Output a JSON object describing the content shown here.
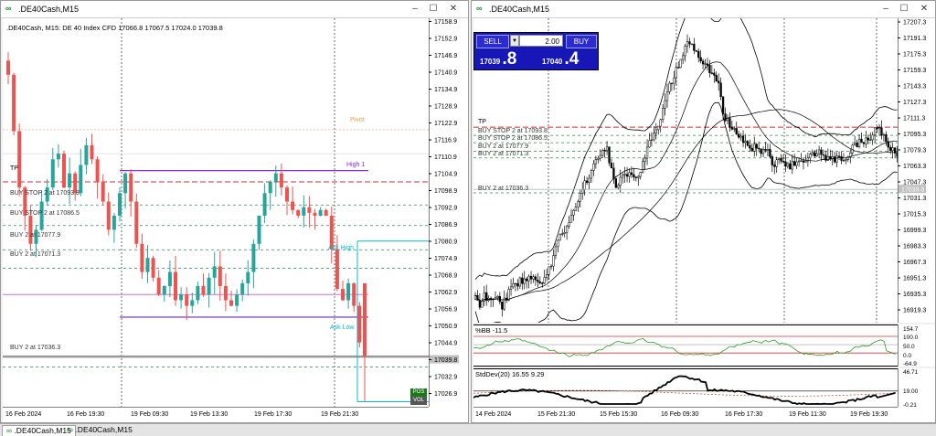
{
  "left_window": {
    "title": ".DE40Cash,M15",
    "controls": {
      "minimize": "–",
      "maximize": "☐",
      "close": "✕"
    },
    "header_text": ".DE40Cash, M15:  DE 40 Index CFD  17066.8 17067.5 17024.0 17039.8",
    "price_axis": [
      "17158.9",
      "17152.9",
      "17146.9",
      "17140.9",
      "17134.9",
      "17128.9",
      "17122.9",
      "17116.9",
      "17110.9",
      "17104.9",
      "17098.9",
      "17092.9",
      "17086.9",
      "17080.9",
      "17074.9",
      "17068.9",
      "17062.9",
      "17056.9",
      "17050.9",
      "17044.9",
      "17039.8",
      "17032.9",
      "17026.9",
      "17020.9"
    ],
    "time_axis": [
      "16 Feb 2024",
      "16 Feb 19:30",
      "19 Feb 09:30",
      "19 Feb 13:30",
      "19 Feb 17:30",
      "19 Feb 21:30"
    ],
    "levels": [
      {
        "label": "TP",
        "color": "#d03030"
      },
      {
        "label": "BUY STOP 2 at 17093.8",
        "color": "#2e8b57"
      },
      {
        "label": "BUY STOP 2 at 17086.5",
        "color": "#2e8b57"
      },
      {
        "label": "BUY 2 at 17077.9",
        "color": "#2e8b57"
      },
      {
        "label": "BUY 2 at 17071.3",
        "color": "#2e8b57"
      },
      {
        "label": "BUY 2 at 17036.3",
        "color": "#2e8b57"
      }
    ],
    "annotations": [
      "High 1",
      "Pivot",
      "Ask High",
      "Ask Low"
    ],
    "badges": {
      "green": "POS",
      "gray": "VOL"
    }
  },
  "right_window": {
    "title": ".DE40Cash,M15",
    "controls": {
      "minimize": "–",
      "maximize": "☐",
      "close": "✕"
    },
    "one_click": {
      "sell_label": "SELL",
      "buy_label": "BUY",
      "volume": "2.00",
      "bid_big": "17039",
      "bid_small": ".8",
      "ask_big": "17040",
      "ask_small": ".4"
    },
    "price_axis": [
      "17207.3",
      "17191.3",
      "17175.3",
      "17159.3",
      "17143.3",
      "17127.3",
      "17111.3",
      "17095.3",
      "17079.3",
      "17063.3",
      "17047.3",
      "17031.3",
      "17015.3",
      "16999.3",
      "16983.3",
      "16967.3",
      "16951.3",
      "16935.3",
      "16919.3"
    ],
    "current_price": "17039.8",
    "time_axis": [
      "14 Feb 2024",
      "15 Feb 21:30",
      "15 Feb 15:30",
      "16 Feb 09:30",
      "16 Feb 17:30",
      "19 Feb 11:30",
      "19 Feb 19:30"
    ],
    "levels": [
      {
        "label": "TP",
        "color": "#d03030"
      },
      {
        "label": "BUY STOP 2 at 17093.8",
        "color": "#2e8b57"
      },
      {
        "label": "BUY STOP 2 at 17086.5",
        "color": "#2e8b57"
      },
      {
        "label": "BUY 2 at 17077.9",
        "color": "#2e8b57"
      },
      {
        "label": "BUY 2 at 17071.3",
        "color": "#2e8b57"
      },
      {
        "label": "BUY 2 at 17036.3",
        "color": "#2e8b57"
      }
    ],
    "indicator1": {
      "label": "%BB -11.5",
      "axis": [
        "154.7",
        "100.0",
        "50.0",
        "0.0",
        "-64.9"
      ]
    },
    "indicator2": {
      "label": "StdDev(20) 16.55 9.29",
      "axis": [
        "46.71",
        "19.00",
        "-0.21"
      ]
    }
  },
  "tabs": [
    ".DE40Cash,M15",
    ".DE40Cash,M15"
  ],
  "colors": {
    "bull": "#26a69a",
    "bear": "#ef5350",
    "buy_line": "#2e8b57",
    "tp_line": "#d03030",
    "bb_line": "#000000",
    "pct_bb": "#2a9d2a"
  }
}
